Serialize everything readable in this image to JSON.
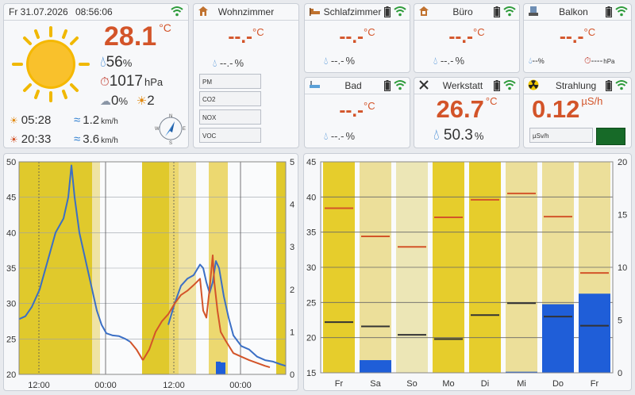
{
  "header": {
    "date": "Fr 31.07.2026",
    "time": "08:56:06"
  },
  "main": {
    "temp": "28.1",
    "temp_unit": "°C",
    "humidity": "56",
    "humidity_unit": "%",
    "pressure": "1017",
    "pressure_unit": "hPa",
    "cloud": "0",
    "cloud_unit": "%",
    "uv": "2",
    "sunrise": "05:28",
    "sunset": "20:33",
    "wind1": "1.2",
    "wind2": "3.6",
    "wind_unit": "km/h",
    "compass": [
      "N",
      "E",
      "S",
      "W"
    ]
  },
  "rooms": {
    "wohnzimmer": {
      "name": "Wohnzimmer",
      "temp": "--.-",
      "unit": "°C",
      "hum": "--.-",
      "hum_unit": "%",
      "labels": [
        "PM",
        "CO2",
        "NOX",
        "VOC"
      ]
    },
    "schlafzimmer": {
      "name": "Schlafzimmer",
      "temp": "--.-",
      "unit": "°C",
      "hum": "--.-",
      "hum_unit": "%"
    },
    "buero": {
      "name": "Büro",
      "temp": "--.-",
      "unit": "°C",
      "hum": "--.-",
      "hum_unit": "%"
    },
    "balkon": {
      "name": "Balkon",
      "temp": "--.-",
      "unit": "°C",
      "hum": "--",
      "hum_unit": "%",
      "pressure": "----",
      "pressure_unit": "hPa"
    },
    "bad": {
      "name": "Bad",
      "temp": "--.-",
      "unit": "°C",
      "hum": "--.-",
      "hum_unit": "%"
    },
    "werkstatt": {
      "name": "Werkstatt",
      "temp": "26.7",
      "unit": "°C",
      "hum": "50.3",
      "hum_unit": "%"
    },
    "strahlung": {
      "name": "Strahlung",
      "value": "0.12",
      "unit": "µS/h",
      "small_label": "µSv/h"
    }
  },
  "chart_data": [
    {
      "type": "line",
      "yaxis_left": [
        20,
        25,
        30,
        35,
        40,
        45,
        50
      ],
      "yaxis_right": [
        0,
        1,
        2,
        3,
        4,
        5
      ],
      "xticks": [
        "12:00",
        "00:00",
        "12:00",
        "00:00"
      ],
      "series": [
        {
          "color": "#3b6fc5",
          "values": [
            [
              0,
              27.8
            ],
            [
              8,
              28.2
            ],
            [
              16,
              29.5
            ],
            [
              26,
              32
            ],
            [
              36,
              36
            ],
            [
              46,
              40
            ],
            [
              56,
              42
            ],
            [
              62,
              45
            ],
            [
              66,
              49.5
            ],
            [
              70,
              45
            ],
            [
              76,
              40
            ],
            [
              82,
              37
            ],
            [
              86,
              35
            ],
            [
              92,
              32
            ],
            [
              98,
              29
            ],
            [
              104,
              27
            ],
            [
              110,
              25.8
            ],
            [
              118,
              25.5
            ],
            [
              126,
              25.4
            ],
            [
              134,
              25
            ],
            [
              140,
              24.6
            ]
          ]
        },
        {
          "color": "#3b6fc5",
          "values": [
            [
              188,
              27
            ],
            [
              196,
              30
            ],
            [
              204,
              32.5
            ],
            [
              212,
              33.5
            ],
            [
              220,
              34
            ],
            [
              228,
              35.5
            ],
            [
              232,
              35
            ],
            [
              236,
              33
            ],
            [
              240,
              31.5
            ],
            [
              244,
              33
            ],
            [
              248,
              36
            ],
            [
              252,
              35
            ],
            [
              258,
              31
            ],
            [
              264,
              28
            ],
            [
              270,
              25.5
            ],
            [
              280,
              24
            ],
            [
              290,
              23.5
            ],
            [
              300,
              22.5
            ],
            [
              310,
              22
            ],
            [
              320,
              21.8
            ],
            [
              330,
              21.4
            ],
            [
              336,
              21.2
            ]
          ]
        },
        {
          "color": "#d35429",
          "values": [
            [
              140,
              24.6
            ],
            [
              148,
              23.5
            ],
            [
              156,
              22
            ]
          ]
        },
        {
          "color": "#d35429",
          "values": [
            [
              156,
              22
            ],
            [
              164,
              23.5
            ],
            [
              172,
              26
            ],
            [
              180,
              27.5
            ],
            [
              188,
              28.5
            ],
            [
              196,
              30
            ],
            [
              204,
              31.2
            ],
            [
              212,
              31.8
            ],
            [
              220,
              32.6
            ],
            [
              228,
              33.5
            ],
            [
              232,
              29
            ],
            [
              236,
              28
            ],
            [
              240,
              32
            ],
            [
              244,
              36.8
            ],
            [
              246,
              33
            ],
            [
              250,
              29
            ],
            [
              254,
              26
            ],
            [
              260,
              24.8
            ],
            [
              270,
              23
            ],
            [
              280,
              22.5
            ],
            [
              290,
              22
            ],
            [
              300,
              21.6
            ],
            [
              310,
              21.2
            ],
            [
              316,
              21
            ]
          ]
        }
      ],
      "bars": [
        {
          "x": 248,
          "v": 0.3
        },
        {
          "x": 254,
          "v": 0.28
        }
      ]
    },
    {
      "type": "bar",
      "categories": [
        "Fr",
        "Sa",
        "So",
        "Mo",
        "Di",
        "Mi",
        "Do",
        "Fr"
      ],
      "yaxis_left": [
        15,
        20,
        25,
        30,
        35,
        40,
        45
      ],
      "yaxis_right": [
        0,
        5,
        10,
        15,
        20
      ],
      "max_temp": [
        38.4,
        34.4,
        32.9,
        37.1,
        39.6,
        40.5,
        37.2,
        29.2
      ],
      "min_temp": [
        22.2,
        21.6,
        20.4,
        19.8,
        23.2,
        24.9,
        23.0,
        21.7
      ],
      "rain": [
        0,
        1.2,
        0,
        0,
        0,
        0.1,
        6.5,
        7.5
      ]
    }
  ]
}
